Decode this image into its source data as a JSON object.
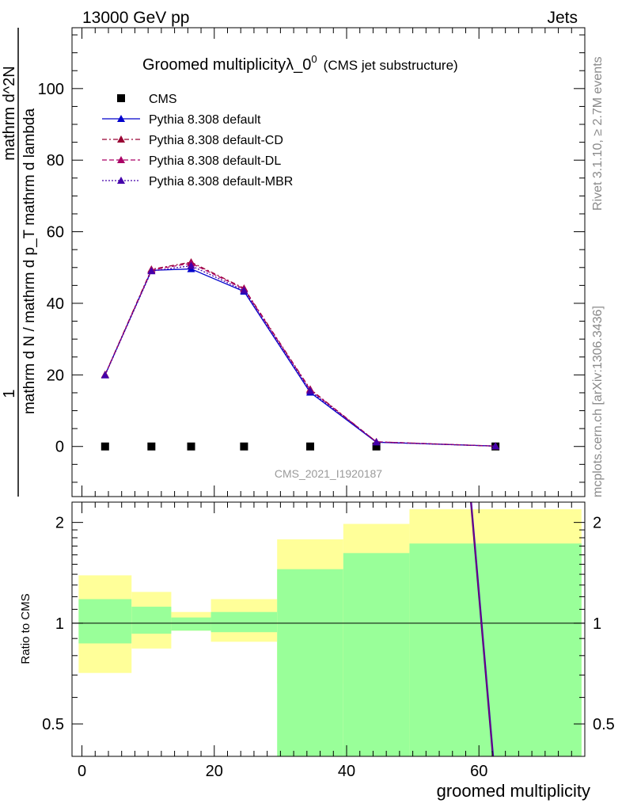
{
  "header": {
    "left": "13000 GeV pp",
    "right": "Jets"
  },
  "side_text": {
    "rivet": "Rivet 3.1.10, ≥ 2.7M events",
    "mcplots": "mcplots.cern.ch [arXiv:1306.3436]"
  },
  "colors": {
    "cms": "#000000",
    "default": "#0000cc",
    "cd": "#990033",
    "dl": "#aa0066",
    "mbr": "#4400aa",
    "band_outer": "#ffff99",
    "band_inner": "#99ff99"
  },
  "chart_data": [
    {
      "type": "line",
      "title": "Groomed multiplicityλ_0",
      "title_sup": "0",
      "subtitle": "(CMS jet substructure)",
      "watermark": "CMS_2021_I1920187",
      "ylabel_top": "1",
      "ylabel_line1": "mathrm d N / mathrm d p_T mathrm d lambda",
      "ylabel_line2": "mathrm d^2N",
      "xlim": [
        -1.5,
        76
      ],
      "ylim": [
        -14,
        117
      ],
      "yticks": [
        "0",
        "20",
        "40",
        "60",
        "80",
        "100"
      ],
      "ytick_values": [
        0,
        20,
        40,
        60,
        80,
        100
      ],
      "legend_position": "top-left",
      "x": [
        3.5,
        10.5,
        16.5,
        24.5,
        34.5,
        44.5,
        62.5
      ],
      "series": [
        {
          "name": "CMS",
          "key": "cms",
          "style": "square",
          "values": [
            0,
            0,
            0,
            0,
            0,
            0,
            0
          ]
        },
        {
          "name": "Pythia 8.308 default",
          "key": "default",
          "style": "solid",
          "values": [
            20,
            49.2,
            49.6,
            43.3,
            15.1,
            1.2,
            0.1
          ]
        },
        {
          "name": "Pythia 8.308 default-CD",
          "key": "cd",
          "style": "dashdot",
          "values": [
            20.1,
            49.5,
            51.5,
            44.2,
            16.0,
            1.3,
            0.1
          ]
        },
        {
          "name": "Pythia 8.308 default-DL",
          "key": "dl",
          "style": "dash",
          "values": [
            20.0,
            49.3,
            51.2,
            44.0,
            15.8,
            1.3,
            0.1
          ]
        },
        {
          "name": "Pythia 8.308 default-MBR",
          "key": "mbr",
          "style": "dot",
          "values": [
            19.9,
            49.0,
            50.5,
            43.6,
            15.5,
            1.2,
            0.1
          ]
        }
      ]
    },
    {
      "type": "area",
      "ylabel": "Ratio to CMS",
      "xlabel": "groomed multiplicity",
      "log_y": true,
      "ylim": [
        0.4,
        2.3
      ],
      "yticks": [
        "0.5",
        "1",
        "2"
      ],
      "ytick_values": [
        0.5,
        1,
        2
      ],
      "xticks": [
        "0",
        "20",
        "40",
        "60"
      ],
      "xtick_values": [
        0,
        20,
        40,
        60
      ],
      "bins": [
        {
          "x_low": -0.5,
          "x_high": 7.5,
          "inner": [
            0.87,
            1.18
          ],
          "outer": [
            0.71,
            1.39
          ]
        },
        {
          "x_low": 7.5,
          "x_high": 13.5,
          "inner": [
            0.93,
            1.12
          ],
          "outer": [
            0.84,
            1.24
          ]
        },
        {
          "x_low": 13.5,
          "x_high": 19.5,
          "inner": [
            0.95,
            1.04
          ],
          "outer": [
            0.95,
            1.08
          ]
        },
        {
          "x_low": 19.5,
          "x_high": 29.5,
          "inner": [
            0.94,
            1.08
          ],
          "outer": [
            0.88,
            1.18
          ]
        },
        {
          "x_low": 29.5,
          "x_high": 39.5,
          "inner": [
            0.2,
            1.45
          ],
          "outer": [
            0.66,
            1.78
          ]
        },
        {
          "x_low": 39.5,
          "x_high": 49.5,
          "inner": [
            0.2,
            1.62
          ],
          "outer": [
            0.43,
            1.98
          ]
        },
        {
          "x_low": 49.5,
          "x_high": 75.5,
          "inner": [
            0.2,
            1.73
          ],
          "outer": [
            0.2,
            2.19
          ]
        }
      ],
      "ratio_line": {
        "x": [
          58.5,
          62.2
        ],
        "y": [
          2.6,
          0.37
        ]
      }
    }
  ]
}
